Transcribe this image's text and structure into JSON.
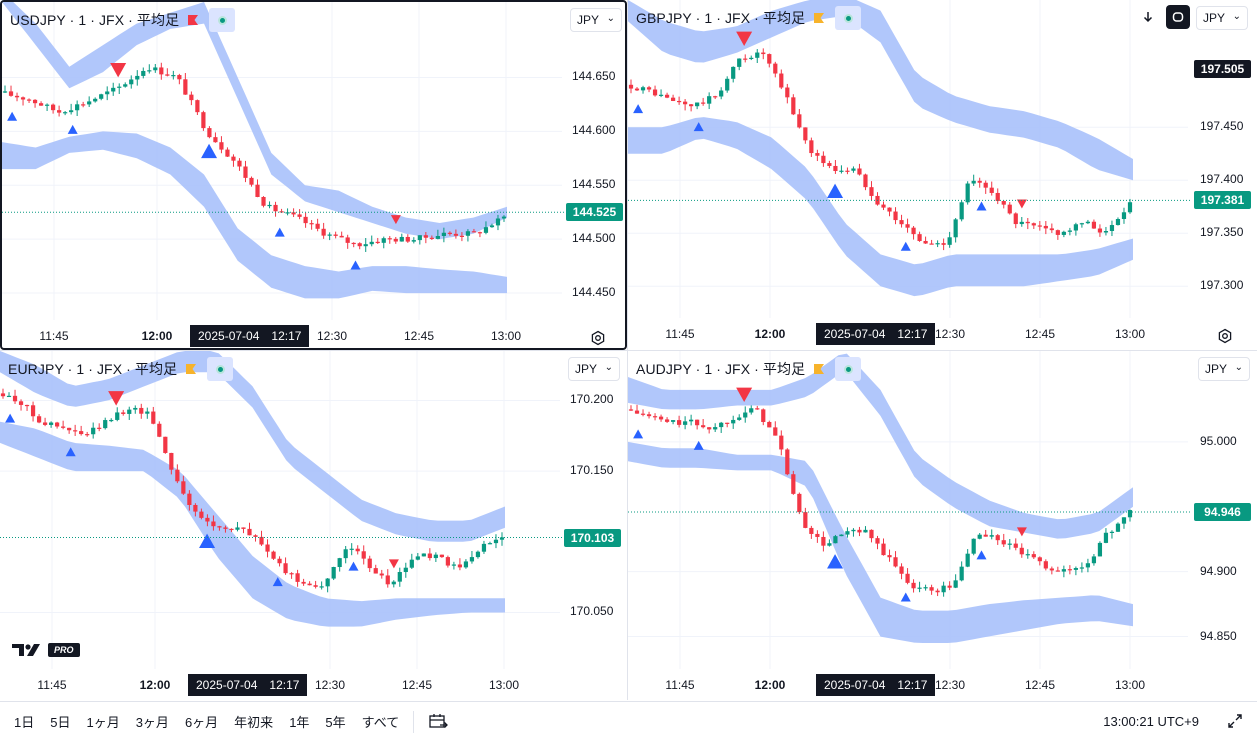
{
  "colors": {
    "up": "#089981",
    "down": "#f23645",
    "band": "#a9c1fb",
    "signal_up": "#2962ff",
    "signal_down": "#f23645",
    "last_price_bg": "#089981",
    "dark": "#131722"
  },
  "panes": [
    {
      "id": "usdjpy",
      "title": "USDJPY · 1 · JFX · 平均足",
      "flag": "red-flag-icon",
      "currency": "JPY",
      "price_ticks": [
        "144.650",
        "144.600",
        "144.550",
        "144.500",
        "144.450"
      ],
      "price_tick_values": [
        144.65,
        144.6,
        144.55,
        144.5,
        144.45
      ],
      "last_price": "144.525",
      "last_price_value": 144.525,
      "time_ticks": [
        "11:45",
        "12:00",
        "12:30",
        "12:45",
        "13:00"
      ],
      "time_tick_bold": "12:00",
      "crosshair_date": "2025-07-04",
      "crosshair_time": "12:17",
      "chart_data": {
        "type": "candlestick",
        "x_range": [
          "11:39",
          "13:00"
        ],
        "ylim": [
          144.425,
          144.72
        ],
        "close_path": [
          144.636,
          144.63,
          144.618,
          144.628,
          144.64,
          144.66,
          144.65,
          144.6,
          144.57,
          144.53,
          144.52,
          144.505,
          144.495,
          144.5,
          144.5,
          144.505,
          144.505,
          144.52
        ],
        "band_upper_top": [
          144.73,
          144.7,
          144.66,
          144.68,
          144.7,
          144.71,
          144.72,
          144.65,
          144.58,
          144.55,
          144.545,
          144.53,
          144.52,
          144.515,
          144.52,
          144.53
        ],
        "band_upper_bottom": [
          144.72,
          144.68,
          144.64,
          144.655,
          144.68,
          144.695,
          144.7,
          144.63,
          144.56,
          144.535,
          144.525,
          144.515,
          144.505,
          144.5,
          144.505,
          144.52
        ],
        "band_lower_top": [
          144.59,
          144.585,
          144.595,
          144.6,
          144.598,
          144.585,
          144.56,
          144.51,
          144.485,
          144.475,
          144.47,
          144.475,
          144.475,
          144.472,
          144.47,
          144.465
        ],
        "band_lower_bottom": [
          144.565,
          144.565,
          144.58,
          144.583,
          144.575,
          144.56,
          144.53,
          144.48,
          144.455,
          144.445,
          144.445,
          144.452,
          144.45,
          144.45,
          144.45,
          144.45
        ]
      }
    },
    {
      "id": "gbpjpy",
      "title": "GBPJPY · 1 · JFX · 平均足",
      "flag": "yellow-flag-icon",
      "currency": "JPY",
      "price_ticks": [
        "197.450",
        "197.400",
        "197.350",
        "197.300"
      ],
      "price_tick_values": [
        197.45,
        197.4,
        197.35,
        197.3
      ],
      "last_price": "197.381",
      "last_price_value": 197.381,
      "crosshair_price": "197.505",
      "crosshair_price_value": 197.505,
      "time_ticks": [
        "11:45",
        "12:00",
        "12:30",
        "12:45",
        "13:00"
      ],
      "time_tick_bold": "12:00",
      "crosshair_date": "2025-07-04",
      "crosshair_time": "12:17",
      "chart_data": {
        "type": "candlestick",
        "x_range": [
          "11:39",
          "13:00"
        ],
        "ylim": [
          197.27,
          197.57
        ],
        "close_path": [
          197.49,
          197.485,
          197.475,
          197.47,
          197.48,
          197.515,
          197.52,
          197.48,
          197.43,
          197.41,
          197.41,
          197.38,
          197.36,
          197.34,
          197.34,
          197.4,
          197.39,
          197.36,
          197.355,
          197.35,
          197.36,
          197.35,
          197.38
        ],
        "band_upper_top": [
          197.57,
          197.55,
          197.54,
          197.545,
          197.56,
          197.57,
          197.575,
          197.56,
          197.5,
          197.48,
          197.47,
          197.465,
          197.455,
          197.44,
          197.42
        ],
        "band_upper_bottom": [
          197.55,
          197.52,
          197.51,
          197.52,
          197.535,
          197.55,
          197.555,
          197.53,
          197.47,
          197.455,
          197.445,
          197.44,
          197.43,
          197.41,
          197.4
        ],
        "band_lower_top": [
          197.45,
          197.45,
          197.46,
          197.455,
          197.44,
          197.41,
          197.36,
          197.33,
          197.32,
          197.33,
          197.33,
          197.33,
          197.33,
          197.335,
          197.345
        ],
        "band_lower_bottom": [
          197.425,
          197.425,
          197.44,
          197.43,
          197.41,
          197.38,
          197.33,
          197.3,
          197.29,
          197.3,
          197.3,
          197.3,
          197.305,
          197.31,
          197.325
        ]
      },
      "toolbar": {
        "down_arrow": "arrow-down-icon",
        "sync": "sync-icon"
      }
    },
    {
      "id": "eurjpy",
      "title": "EURJPY · 1 · JFX · 平均足",
      "flag": "yellow-flag-icon",
      "currency": "JPY",
      "price_ticks": [
        "170.200",
        "170.150",
        "170.050"
      ],
      "price_tick_values": [
        170.2,
        170.15,
        170.05
      ],
      "last_price": "170.103",
      "last_price_value": 170.103,
      "time_ticks": [
        "11:45",
        "12:00",
        "12:30",
        "12:45",
        "13:00"
      ],
      "time_tick_bold": "12:00",
      "crosshair_date": "2025-07-04",
      "crosshair_time": "12:17",
      "chart_data": {
        "type": "candlestick",
        "x_range": [
          "11:39",
          "13:00"
        ],
        "ylim": [
          170.01,
          170.235
        ],
        "close_path": [
          170.205,
          170.2,
          170.185,
          170.18,
          170.175,
          170.185,
          170.195,
          170.19,
          170.15,
          170.12,
          170.11,
          170.11,
          170.1,
          170.08,
          170.07,
          170.07,
          170.1,
          170.08,
          170.07,
          170.09,
          170.09,
          170.08,
          170.095,
          170.105
        ],
        "band_upper_top": [
          170.235,
          170.225,
          170.21,
          170.215,
          170.225,
          170.235,
          170.235,
          170.21,
          170.17,
          170.15,
          170.13,
          170.12,
          170.115,
          170.115,
          170.125
        ],
        "band_upper_bottom": [
          170.22,
          170.205,
          170.195,
          170.2,
          170.21,
          170.22,
          170.22,
          170.195,
          170.155,
          170.135,
          170.115,
          170.105,
          170.1,
          170.1,
          170.11
        ],
        "band_lower_top": [
          170.185,
          170.18,
          170.17,
          170.168,
          170.165,
          170.15,
          170.12,
          170.09,
          170.07,
          170.06,
          170.058,
          170.06,
          170.06,
          170.06,
          170.06
        ],
        "band_lower_bottom": [
          170.17,
          170.16,
          170.15,
          170.15,
          170.15,
          170.13,
          170.09,
          170.06,
          170.045,
          170.04,
          170.04,
          170.045,
          170.048,
          170.05,
          170.05
        ]
      }
    },
    {
      "id": "audjpy",
      "title": "AUDJPY · 1 · JFX · 平均足",
      "flag": "yellow-flag-icon",
      "currency": "JPY",
      "price_ticks": [
        "95.000",
        "94.900",
        "94.850"
      ],
      "price_tick_values": [
        95.0,
        94.9,
        94.85
      ],
      "last_price": "94.946",
      "last_price_value": 94.946,
      "time_ticks": [
        "11:45",
        "12:00",
        "12:30",
        "12:45",
        "13:00"
      ],
      "time_tick_bold": "12:00",
      "crosshair_date": "2025-07-04",
      "crosshair_time": "12:17",
      "chart_data": {
        "type": "candlestick",
        "x_range": [
          "11:39",
          "13:00"
        ],
        "ylim": [
          94.825,
          95.07
        ],
        "close_path": [
          95.025,
          95.02,
          95.015,
          95.015,
          95.01,
          95.02,
          95.025,
          95.0,
          94.94,
          94.92,
          94.93,
          94.93,
          94.91,
          94.89,
          94.885,
          94.89,
          94.93,
          94.925,
          94.915,
          94.905,
          94.9,
          94.905,
          94.93,
          94.946
        ],
        "band_upper_top": [
          95.05,
          95.04,
          95.04,
          95.04,
          95.04,
          95.05,
          95.07,
          95.04,
          94.99,
          94.97,
          94.955,
          94.945,
          94.94,
          94.945,
          94.965
        ],
        "band_upper_bottom": [
          95.03,
          95.025,
          95.025,
          95.028,
          95.028,
          95.035,
          95.055,
          95.02,
          94.97,
          94.95,
          94.935,
          94.93,
          94.925,
          94.93,
          94.95
        ],
        "band_lower_top": [
          95.0,
          94.995,
          94.995,
          94.99,
          94.99,
          94.985,
          94.93,
          94.88,
          94.87,
          94.87,
          94.875,
          94.878,
          94.88,
          94.882,
          94.875
        ],
        "band_lower_bottom": [
          94.985,
          94.98,
          94.98,
          94.978,
          94.978,
          94.965,
          94.9,
          94.85,
          94.845,
          94.845,
          94.85,
          94.855,
          94.86,
          94.862,
          94.858
        ]
      }
    }
  ],
  "bottom_bar": {
    "ranges": [
      "1日",
      "5日",
      "1ヶ月",
      "3ヶ月",
      "6ヶ月",
      "年初来",
      "1年",
      "5年",
      "すべて"
    ],
    "date_range_icon": "calendar-range-icon",
    "clock": "13:00:21 UTC+9",
    "fullscreen_icon": "fullscreen-icon"
  },
  "logo": {
    "text": "TV",
    "badge": "PRO"
  }
}
